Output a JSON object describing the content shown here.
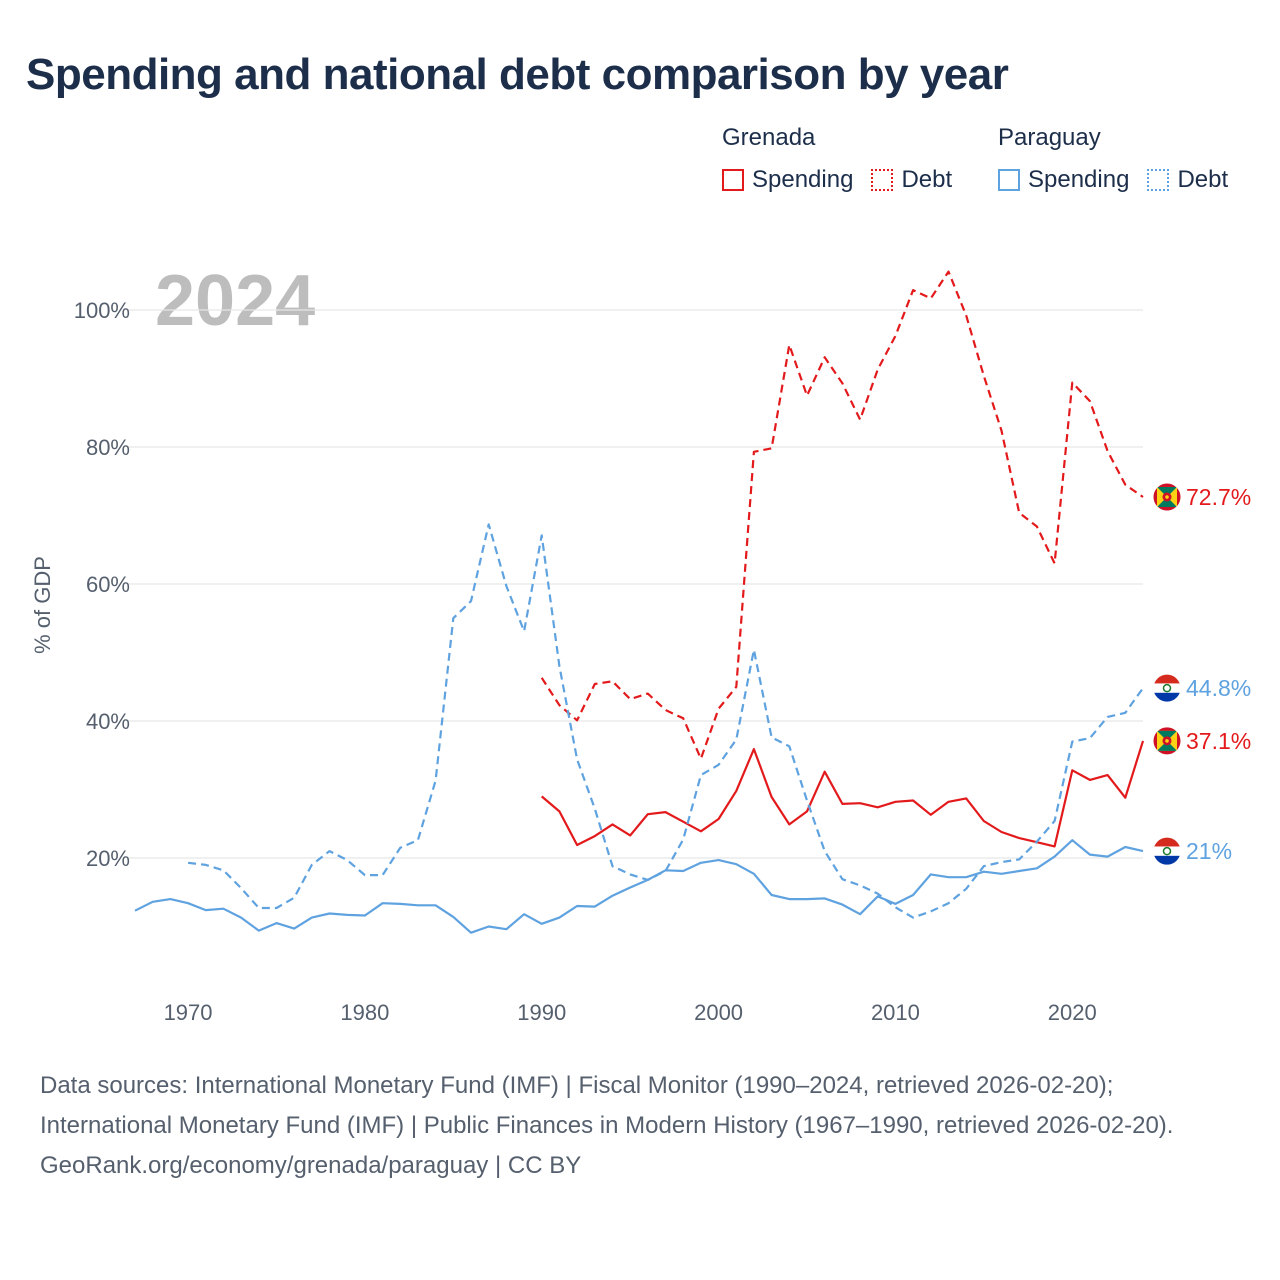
{
  "title": "Spending and national debt comparison by year",
  "legend": {
    "groups": [
      {
        "name": "Grenada",
        "items": [
          "Spending",
          "Debt"
        ],
        "color": "#e31a1c"
      },
      {
        "name": "Paraguay",
        "items": [
          "Spending",
          "Debt"
        ],
        "color": "#5fa2e0"
      }
    ]
  },
  "footer": {
    "sources": "Data sources: International Monetary Fund (IMF) | Fiscal Monitor (1990–2024, retrieved 2026-02-20); International Monetary Fund (IMF) | Public Finances in Modern History (1967–1990, retrieved 2026-02-20).",
    "credit": "GeoRank.org/economy/grenada/paraguay | CC BY"
  },
  "chart_data": {
    "type": "line",
    "year_label": "2024",
    "ylabel": "% of GDP",
    "xlim": [
      1967,
      2024
    ],
    "ylim": [
      0,
      110
    ],
    "xticks": [
      1970,
      1980,
      1990,
      2000,
      2010,
      2020
    ],
    "xtick_labels": [
      "1970",
      "1980",
      "1990",
      "2000",
      "2010",
      "2020"
    ],
    "yticks": [
      20,
      40,
      60,
      80,
      100
    ],
    "ytick_labels": [
      "20%",
      "40%",
      "60%",
      "80%",
      "100%"
    ],
    "series": [
      {
        "name": "Grenada Debt",
        "country": "Grenada",
        "measure": "Debt",
        "color": "#e31a1c",
        "dash": true,
        "end_label": "72.7%",
        "points": [
          [
            1990,
            46.3
          ],
          [
            1991,
            42.3
          ],
          [
            1992,
            40.1
          ],
          [
            1993,
            45.4
          ],
          [
            1994,
            45.8
          ],
          [
            1995,
            43.2
          ],
          [
            1996,
            44
          ],
          [
            1997,
            41.6
          ],
          [
            1998,
            40.4
          ],
          [
            1999,
            34.5
          ],
          [
            2000,
            41.8
          ],
          [
            2001,
            45
          ],
          [
            2002,
            79.3
          ],
          [
            2003,
            79.8
          ],
          [
            2004,
            94.9
          ],
          [
            2005,
            87.5
          ],
          [
            2006,
            93.1
          ],
          [
            2007,
            89.3
          ],
          [
            2008,
            84
          ],
          [
            2009,
            91.3
          ],
          [
            2010,
            96.2
          ],
          [
            2011,
            102.9
          ],
          [
            2012,
            101.7
          ],
          [
            2013,
            105.6
          ],
          [
            2014,
            99.2
          ],
          [
            2015,
            90.4
          ],
          [
            2016,
            82.4
          ],
          [
            2017,
            70.4
          ],
          [
            2018,
            68.4
          ],
          [
            2019,
            63
          ],
          [
            2020,
            89.4
          ],
          [
            2021,
            86.7
          ],
          [
            2022,
            79.4
          ],
          [
            2023,
            74.5
          ],
          [
            2024,
            72.7
          ]
        ]
      },
      {
        "name": "Grenada Spending",
        "country": "Grenada",
        "measure": "Spending",
        "color": "#e31a1c",
        "dash": false,
        "end_label": "37.1%",
        "points": [
          [
            1990,
            29
          ],
          [
            1991,
            26.8
          ],
          [
            1992,
            21.9
          ],
          [
            1993,
            23.2
          ],
          [
            1994,
            24.9
          ],
          [
            1995,
            23.3
          ],
          [
            1996,
            26.4
          ],
          [
            1997,
            26.7
          ],
          [
            1998,
            25.3
          ],
          [
            1999,
            23.9
          ],
          [
            2000,
            25.7
          ],
          [
            2001,
            29.8
          ],
          [
            2002,
            35.9
          ],
          [
            2003,
            28.9
          ],
          [
            2004,
            24.9
          ],
          [
            2005,
            26.8
          ],
          [
            2006,
            32.6
          ],
          [
            2007,
            27.9
          ],
          [
            2008,
            28
          ],
          [
            2009,
            27.4
          ],
          [
            2010,
            28.2
          ],
          [
            2011,
            28.4
          ],
          [
            2012,
            26.3
          ],
          [
            2013,
            28.2
          ],
          [
            2014,
            28.7
          ],
          [
            2015,
            25.4
          ],
          [
            2016,
            23.8
          ],
          [
            2017,
            22.9
          ],
          [
            2018,
            22.3
          ],
          [
            2019,
            21.7
          ],
          [
            2020,
            32.8
          ],
          [
            2021,
            31.4
          ],
          [
            2022,
            32.1
          ],
          [
            2023,
            28.8
          ],
          [
            2024,
            37.1
          ]
        ]
      },
      {
        "name": "Paraguay Debt",
        "country": "Paraguay",
        "measure": "Debt",
        "color": "#5fa2e0",
        "dash": true,
        "end_label": "44.8%",
        "points": [
          [
            1970,
            19.3
          ],
          [
            1971,
            19
          ],
          [
            1972,
            18.2
          ],
          [
            1973,
            15.6
          ],
          [
            1974,
            12.7
          ],
          [
            1975,
            12.7
          ],
          [
            1976,
            14.2
          ],
          [
            1977,
            19
          ],
          [
            1978,
            21
          ],
          [
            1979,
            19.7
          ],
          [
            1980,
            17.5
          ],
          [
            1981,
            17.5
          ],
          [
            1982,
            21.5
          ],
          [
            1983,
            22.6
          ],
          [
            1984,
            31.3
          ],
          [
            1985,
            55
          ],
          [
            1986,
            57.5
          ],
          [
            1987,
            68.7
          ],
          [
            1988,
            59.7
          ],
          [
            1989,
            53.1
          ],
          [
            1990,
            67.1
          ],
          [
            1991,
            48
          ],
          [
            1992,
            34.4
          ],
          [
            1993,
            27.2
          ],
          [
            1994,
            18.8
          ],
          [
            1995,
            17.6
          ],
          [
            1996,
            16.8
          ],
          [
            1997,
            18.1
          ],
          [
            1998,
            22.7
          ],
          [
            1999,
            32.1
          ],
          [
            2000,
            33.6
          ],
          [
            2001,
            37.3
          ],
          [
            2002,
            50.4
          ],
          [
            2003,
            37.6
          ],
          [
            2004,
            36.3
          ],
          [
            2005,
            28.4
          ],
          [
            2006,
            21
          ],
          [
            2007,
            16.9
          ],
          [
            2008,
            16
          ],
          [
            2009,
            14.8
          ],
          [
            2010,
            12.8
          ],
          [
            2011,
            11.3
          ],
          [
            2012,
            12.2
          ],
          [
            2013,
            13.4
          ],
          [
            2014,
            15.5
          ],
          [
            2015,
            18.8
          ],
          [
            2016,
            19.4
          ],
          [
            2017,
            19.8
          ],
          [
            2018,
            22.4
          ],
          [
            2019,
            25.4
          ],
          [
            2020,
            37
          ],
          [
            2021,
            37.5
          ],
          [
            2022,
            40.6
          ],
          [
            2023,
            41.2
          ],
          [
            2024,
            44.8
          ]
        ]
      },
      {
        "name": "Paraguay Spending",
        "country": "Paraguay",
        "measure": "Spending",
        "color": "#5fa2e0",
        "dash": false,
        "end_label": "21%",
        "points": [
          [
            1967,
            12.3
          ],
          [
            1968,
            13.6
          ],
          [
            1969,
            14
          ],
          [
            1970,
            13.4
          ],
          [
            1971,
            12.4
          ],
          [
            1972,
            12.6
          ],
          [
            1973,
            11.3
          ],
          [
            1974,
            9.4
          ],
          [
            1975,
            10.5
          ],
          [
            1976,
            9.7
          ],
          [
            1977,
            11.3
          ],
          [
            1978,
            11.9
          ],
          [
            1979,
            11.7
          ],
          [
            1980,
            11.6
          ],
          [
            1981,
            13.4
          ],
          [
            1982,
            13.3
          ],
          [
            1983,
            13.1
          ],
          [
            1984,
            13.1
          ],
          [
            1985,
            11.4
          ],
          [
            1986,
            9.1
          ],
          [
            1987,
            10
          ],
          [
            1988,
            9.6
          ],
          [
            1989,
            11.8
          ],
          [
            1990,
            10.4
          ],
          [
            1991,
            11.3
          ],
          [
            1992,
            13
          ],
          [
            1993,
            12.9
          ],
          [
            1994,
            14.5
          ],
          [
            1995,
            15.7
          ],
          [
            1996,
            16.8
          ],
          [
            1997,
            18.2
          ],
          [
            1998,
            18.1
          ],
          [
            1999,
            19.3
          ],
          [
            2000,
            19.7
          ],
          [
            2001,
            19.1
          ],
          [
            2002,
            17.7
          ],
          [
            2003,
            14.6
          ],
          [
            2004,
            14
          ],
          [
            2005,
            14
          ],
          [
            2006,
            14.1
          ],
          [
            2007,
            13.2
          ],
          [
            2008,
            11.8
          ],
          [
            2009,
            14.4
          ],
          [
            2010,
            13.3
          ],
          [
            2011,
            14.6
          ],
          [
            2012,
            17.6
          ],
          [
            2013,
            17.2
          ],
          [
            2014,
            17.2
          ],
          [
            2015,
            18
          ],
          [
            2016,
            17.7
          ],
          [
            2017,
            18.1
          ],
          [
            2018,
            18.5
          ],
          [
            2019,
            20.2
          ],
          [
            2020,
            22.6
          ],
          [
            2021,
            20.5
          ],
          [
            2022,
            20.2
          ],
          [
            2023,
            21.6
          ],
          [
            2024,
            21
          ]
        ]
      }
    ]
  }
}
